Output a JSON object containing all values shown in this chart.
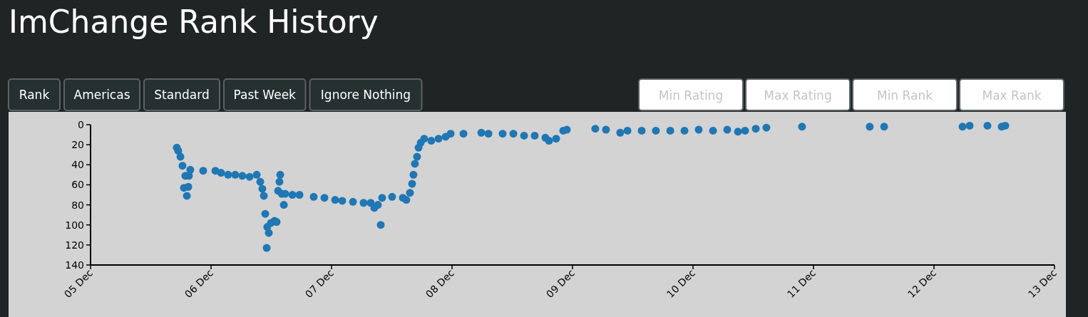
{
  "chart_data": {
    "type": "scatter",
    "title": "ImChange Rank History",
    "marker": "circle",
    "grid": false,
    "annotations": [
      "Rank",
      "Americas",
      "Standard",
      "Past Week",
      "Ignore Nothing",
      "Min Rating",
      "Max Rating",
      "Min Rank",
      "Max Rank"
    ],
    "xlim": [
      "--12-05",
      "--12-13"
    ],
    "xticks": [
      {
        "value": "--12-05",
        "label": "05 Dec"
      },
      {
        "value": "--12-06",
        "label": "06 Dec"
      },
      {
        "value": "--12-07",
        "label": "07 Dec"
      },
      {
        "value": "--12-08",
        "label": "08 Dec"
      },
      {
        "value": "--12-09",
        "label": "09 Dec"
      },
      {
        "value": "--12-10",
        "label": "10 Dec"
      },
      {
        "value": "--12-11",
        "label": "11 Dec"
      },
      {
        "value": "--12-12",
        "label": "12 Dec"
      },
      {
        "value": "--12-13",
        "label": "13 Dec"
      }
    ],
    "ylim": [
      140,
      0
    ],
    "yticks": [
      0,
      20,
      40,
      60,
      80,
      100,
      120,
      140
    ],
    "series": [
      {
        "color": "#1f77b4",
        "x": [
          "--12-05T17:11",
          "--12-05T17:28",
          "--12-05T17:54",
          "--12-05T18:19",
          "--12-05T18:53",
          "--12-05T18:36",
          "--12-05T19:11",
          "--12-05T19:28",
          "--12-05T19:36",
          "--12-05T19:52",
          "--12-05T22:26",
          "--12-06T00:52",
          "--12-06T02:00",
          "--12-06T03:24",
          "--12-06T04:49",
          "--12-06T06:14",
          "--12-06T07:41",
          "--12-06T09:06",
          "--12-06T09:48",
          "--12-06T10:13",
          "--12-06T10:31",
          "--12-06T10:48",
          "--12-06T11:12",
          "--12-06T11:30",
          "--12-06T11:05",
          "--12-06T11:56",
          "--12-06T12:39",
          "--12-06T13:03",
          "--12-06T13:47",
          "--12-06T13:38",
          "--12-06T13:21",
          "--12-06T14:30",
          "--12-06T14:04",
          "--12-06T14:46",
          "--12-06T16:12",
          "--12-06T17:37",
          "--12-06T20:27",
          "--12-06T22:35",
          "--12-07T00:43",
          "--12-07T02:08",
          "--12-07T04:16",
          "--12-07T06:23",
          "--12-07T07:48",
          "--12-07T08:31",
          "--12-07T09:14",
          "--12-07T09:48",
          "--12-07T10:05",
          "--12-07T12:04",
          "--12-07T14:12",
          "--12-07T14:54",
          "--12-07T15:37",
          "--12-07T16:03",
          "--12-07T16:19",
          "--12-07T16:36",
          "--12-07T17:02",
          "--12-07T17:20",
          "--12-07T17:46",
          "--12-07T18:27",
          "--12-07T19:52",
          "--12-07T21:19",
          "--12-07T22:44",
          "--12-07T23:43",
          "--12-08T02:17",
          "--12-08T05:50",
          "--12-08T07:15",
          "--12-08T10:05",
          "--12-08T12:13",
          "--12-08T14:21",
          "--12-08T16:28",
          "--12-08T18:36",
          "--12-08T19:19",
          "--12-08T20:44",
          "--12-08T22:09",
          "--12-08T22:52",
          "--12-09T04:32",
          "--12-09T06:40",
          "--12-09T09:30",
          "--12-09T10:57",
          "--12-09T13:47",
          "--12-09T16:36",
          "--12-09T19:28",
          "--12-09T22:18",
          "--12-10T01:08",
          "--12-10T03:59",
          "--12-10T06:49",
          "--12-10T08:57",
          "--12-10T10:22",
          "--12-10T12:30",
          "--12-10T14:37",
          "--12-10T21:43",
          "--12-11T11:12",
          "--12-11T14:04",
          "--12-12T05:41",
          "--12-12T07:06",
          "--12-12T10:39",
          "--12-12T13:29",
          "--12-12T14:12"
        ],
        "values": [
          23,
          26,
          32,
          41,
          51,
          63,
          71,
          62,
          51,
          45,
          46,
          46,
          48,
          50,
          50,
          51,
          52,
          50,
          57,
          64,
          71,
          89,
          102,
          108,
          123,
          98,
          96,
          97,
          50,
          57,
          66,
          80,
          69,
          69,
          70,
          70,
          72,
          73,
          75,
          76,
          77,
          78,
          78,
          83,
          80,
          100,
          73,
          72,
          73,
          75,
          68,
          59,
          50,
          39,
          32,
          23,
          18,
          14,
          16,
          14,
          12,
          9,
          9,
          8,
          9,
          9,
          9,
          11,
          11,
          13,
          16,
          14,
          6,
          5,
          4,
          5,
          8,
          6,
          6,
          6,
          6,
          6,
          5,
          6,
          5,
          7,
          6,
          4,
          3,
          2,
          2,
          2,
          2,
          1,
          1,
          2,
          1
        ]
      }
    ]
  }
}
